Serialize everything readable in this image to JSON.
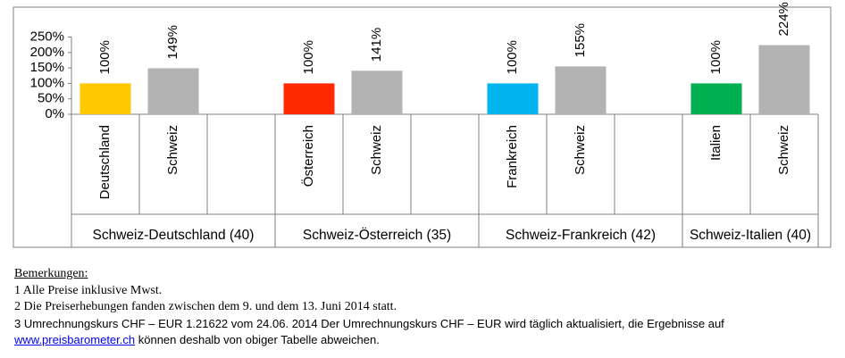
{
  "chart_data": {
    "type": "bar",
    "ylim": [
      0,
      250
    ],
    "yticks": [
      {
        "value": 0,
        "label": "0%"
      },
      {
        "value": 50,
        "label": "50%"
      },
      {
        "value": 100,
        "label": "100%"
      },
      {
        "value": 150,
        "label": "150%"
      },
      {
        "value": 200,
        "label": "200%"
      },
      {
        "value": 250,
        "label": "250%"
      }
    ],
    "groups": [
      {
        "name": "Schweiz-Deutschland (40)",
        "categories": [
          "Deutschland",
          "Schweiz",
          null
        ],
        "values": [
          100,
          149,
          null
        ],
        "value_labels": [
          "100%",
          "149%",
          null
        ],
        "colors": [
          "#ffc800",
          "#b3b3b3",
          null
        ]
      },
      {
        "name": "Schweiz-Österreich (35)",
        "categories": [
          "Österreich",
          "Schweiz",
          null
        ],
        "values": [
          100,
          141,
          null
        ],
        "value_labels": [
          "100%",
          "141%",
          null
        ],
        "colors": [
          "#ff2a00",
          "#b3b3b3",
          null
        ]
      },
      {
        "name": "Schweiz-Frankreich (42)",
        "categories": [
          "Frankreich",
          "Schweiz",
          null
        ],
        "values": [
          100,
          155,
          null
        ],
        "value_labels": [
          "100%",
          "155%",
          null
        ],
        "colors": [
          "#00b4f0",
          "#b3b3b3",
          null
        ]
      },
      {
        "name": "Schweiz-Italien (40)",
        "categories": [
          "Italien",
          "Schweiz"
        ],
        "values": [
          100,
          224
        ],
        "value_labels": [
          "100%",
          "224%"
        ],
        "colors": [
          "#00b050",
          "#b3b3b3"
        ]
      }
    ]
  },
  "notes": {
    "heading": "Bemerkungen:",
    "items": [
      "1 Alle Preise inklusive Mwst.",
      "2 Die Preiserhebungen fanden zwischen dem 9. und dem 13. Juni 2014 statt.",
      "3 Umrechnungskurs CHF – EUR 1.21622 vom 24.06. 2014 Der Umrechnungskurs CHF – EUR wird täglich aktualisiert, die Ergebnisse auf"
    ],
    "link": "www.preisbarometer.ch",
    "link_suffix": " können deshalb von obiger Tabelle abweichen."
  }
}
